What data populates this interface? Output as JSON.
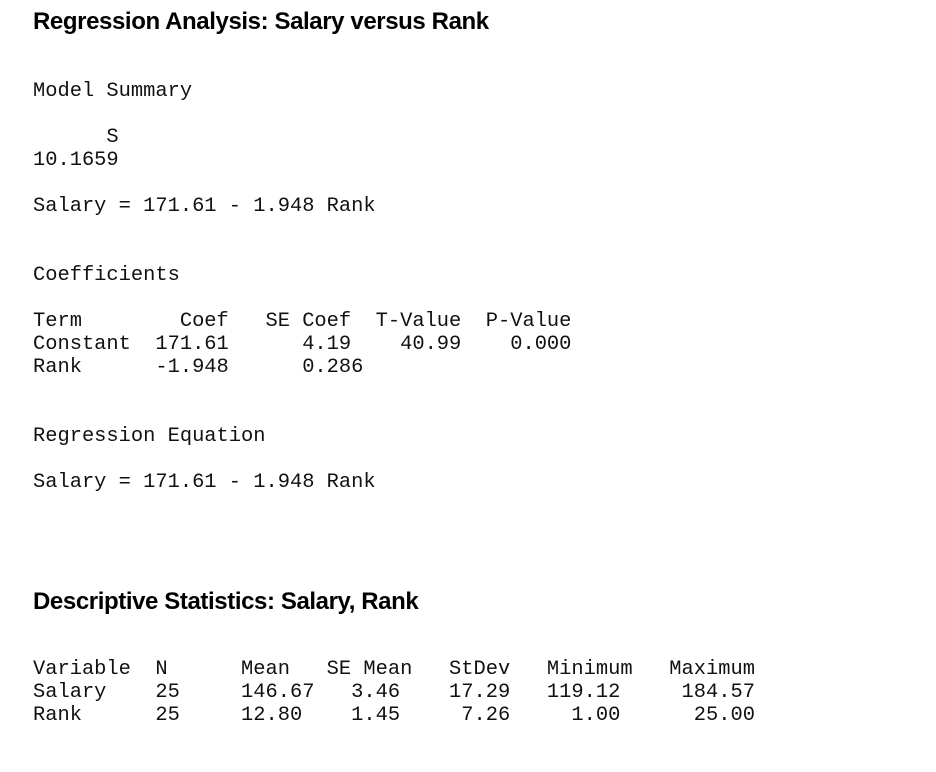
{
  "page": {
    "background": "#ffffff",
    "heading_color": "#000000",
    "mono_text_color": "#111111"
  },
  "regression": {
    "title": "Regression Analysis: Salary versus Rank",
    "model_summary": {
      "heading": "Model Summary",
      "columns": [
        "S"
      ],
      "values": [
        "10.1659"
      ],
      "lines": {
        "header": "      S",
        "value": "10.1659"
      }
    },
    "model_fit_equation": "Salary = 171.61 - 1.948 Rank",
    "coefficients": {
      "heading": "Coefficients",
      "columns": [
        "Term",
        "Coef",
        "SE Coef",
        "T-Value",
        "P-Value"
      ],
      "rows": [
        {
          "term": "Constant",
          "coef": "171.61",
          "se_coef": "4.19",
          "t_value": "40.99",
          "p_value": "0.000"
        },
        {
          "term": "Rank",
          "coef": "-1.948",
          "se_coef": "0.286",
          "t_value": "",
          "p_value": ""
        }
      ],
      "lines": {
        "header": "Term        Coef   SE Coef  T-Value  P-Value",
        "constant": "Constant  171.61      4.19    40.99    0.000",
        "rank": "Rank      -1.948      0.286"
      }
    },
    "regression_equation": {
      "heading": "Regression Equation",
      "equation": "Salary = 171.61 - 1.948 Rank"
    }
  },
  "descriptive": {
    "title": "Descriptive Statistics: Salary, Rank",
    "columns": [
      "Variable",
      "N",
      "Mean",
      "SE Mean",
      "StDev",
      "Minimum",
      "Maximum"
    ],
    "rows": [
      {
        "variable": "Salary",
        "n": "25",
        "mean": "146.67",
        "se_mean": "3.46",
        "stdev": "17.29",
        "minimum": "119.12",
        "maximum": "184.57"
      },
      {
        "variable": "Rank",
        "n": "25",
        "mean": "12.80",
        "se_mean": "1.45",
        "stdev": "7.26",
        "minimum": "1.00",
        "maximum": "25.00"
      }
    ],
    "lines": {
      "header": "Variable  N      Mean   SE Mean   StDev   Minimum   Maximum",
      "salary": "Salary    25     146.67   3.46    17.29   119.12     184.57",
      "rank": "Rank      25     12.80    1.45     7.26     1.00      25.00"
    }
  }
}
